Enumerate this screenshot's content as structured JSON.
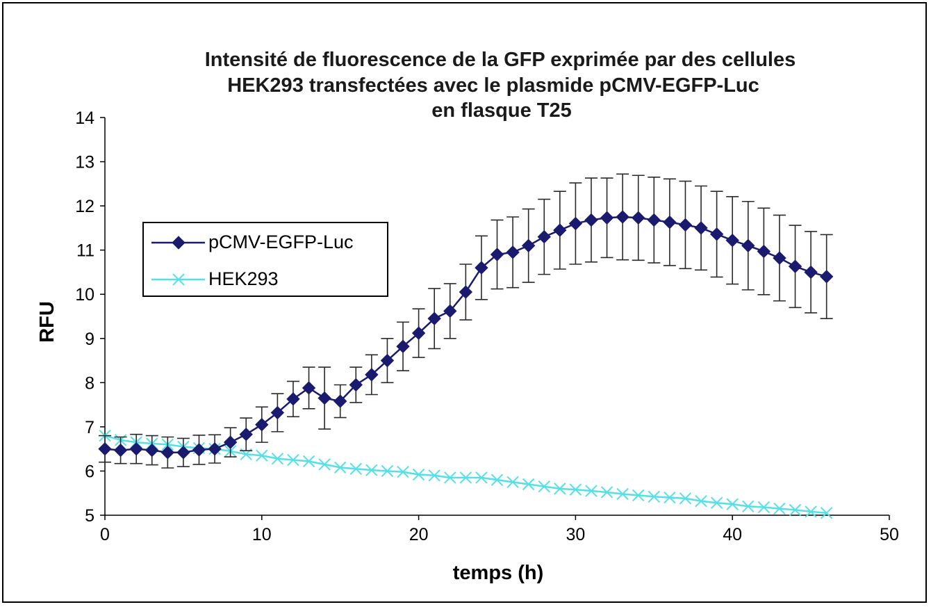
{
  "chart_data": {
    "type": "line",
    "title_lines": [
      "Intensité  de fluorescence  de la GFP exprimée par des cellules",
      "HEK293  transfectées  avec le plasmide pCMV-EGFP-Luc",
      "en flasque  T25"
    ],
    "xlabel": "temps  (h)",
    "ylabel": "RFU",
    "xlim": [
      0,
      50
    ],
    "ylim": [
      5,
      14
    ],
    "xticks": [
      0,
      10,
      20,
      30,
      40,
      50
    ],
    "yticks": [
      5,
      6,
      7,
      8,
      9,
      10,
      11,
      12,
      13,
      14
    ],
    "grid": false,
    "legend_position": "left",
    "series": [
      {
        "name": "pCMV-EGFP-Luc",
        "color": "#1a1a6e",
        "marker": "diamond",
        "x": [
          0,
          1,
          2,
          3,
          4,
          5,
          6,
          7,
          8,
          9,
          10,
          11,
          12,
          13,
          14,
          15,
          16,
          17,
          18,
          19,
          20,
          21,
          22,
          23,
          24,
          25,
          26,
          27,
          28,
          29,
          30,
          31,
          32,
          33,
          34,
          35,
          36,
          37,
          38,
          39,
          40,
          41,
          42,
          43,
          44,
          45,
          46
        ],
        "values": [
          6.5,
          6.47,
          6.5,
          6.47,
          6.42,
          6.42,
          6.48,
          6.5,
          6.65,
          6.83,
          7.05,
          7.32,
          7.63,
          7.88,
          7.65,
          7.58,
          7.95,
          8.18,
          8.5,
          8.82,
          9.12,
          9.45,
          9.62,
          10.05,
          10.6,
          10.9,
          10.95,
          11.1,
          11.3,
          11.45,
          11.6,
          11.68,
          11.73,
          11.75,
          11.73,
          11.68,
          11.63,
          11.57,
          11.5,
          11.36,
          11.22,
          11.1,
          10.97,
          10.82,
          10.63,
          10.5,
          10.4
        ],
        "error": [
          0.3,
          0.3,
          0.33,
          0.33,
          0.35,
          0.32,
          0.33,
          0.32,
          0.33,
          0.37,
          0.4,
          0.43,
          0.4,
          0.47,
          0.7,
          0.37,
          0.4,
          0.45,
          0.5,
          0.55,
          0.55,
          0.68,
          0.62,
          0.63,
          0.72,
          0.78,
          0.8,
          0.83,
          0.85,
          0.88,
          0.92,
          0.95,
          0.9,
          0.97,
          0.96,
          0.97,
          0.98,
          0.99,
          0.95,
          0.97,
          0.99,
          1.0,
          0.98,
          0.97,
          0.93,
          0.92,
          0.95
        ]
      },
      {
        "name": "HEK293",
        "color": "#55e0e8",
        "marker": "x",
        "x": [
          0,
          1,
          2,
          3,
          4,
          5,
          6,
          7,
          8,
          9,
          10,
          11,
          12,
          13,
          14,
          15,
          16,
          17,
          18,
          19,
          20,
          21,
          22,
          23,
          24,
          25,
          26,
          27,
          28,
          29,
          30,
          31,
          32,
          33,
          34,
          35,
          36,
          37,
          38,
          39,
          40,
          41,
          42,
          43,
          44,
          45,
          46
        ],
        "values": [
          6.8,
          6.7,
          6.65,
          6.62,
          6.6,
          6.55,
          6.52,
          6.5,
          6.45,
          6.38,
          6.35,
          6.28,
          6.25,
          6.22,
          6.15,
          6.08,
          6.05,
          6.02,
          6.0,
          5.98,
          5.92,
          5.9,
          5.85,
          5.85,
          5.85,
          5.8,
          5.75,
          5.7,
          5.65,
          5.6,
          5.58,
          5.55,
          5.52,
          5.48,
          5.45,
          5.42,
          5.4,
          5.38,
          5.32,
          5.28,
          5.25,
          5.2,
          5.18,
          5.15,
          5.12,
          5.08,
          5.05
        ],
        "error": []
      }
    ]
  }
}
